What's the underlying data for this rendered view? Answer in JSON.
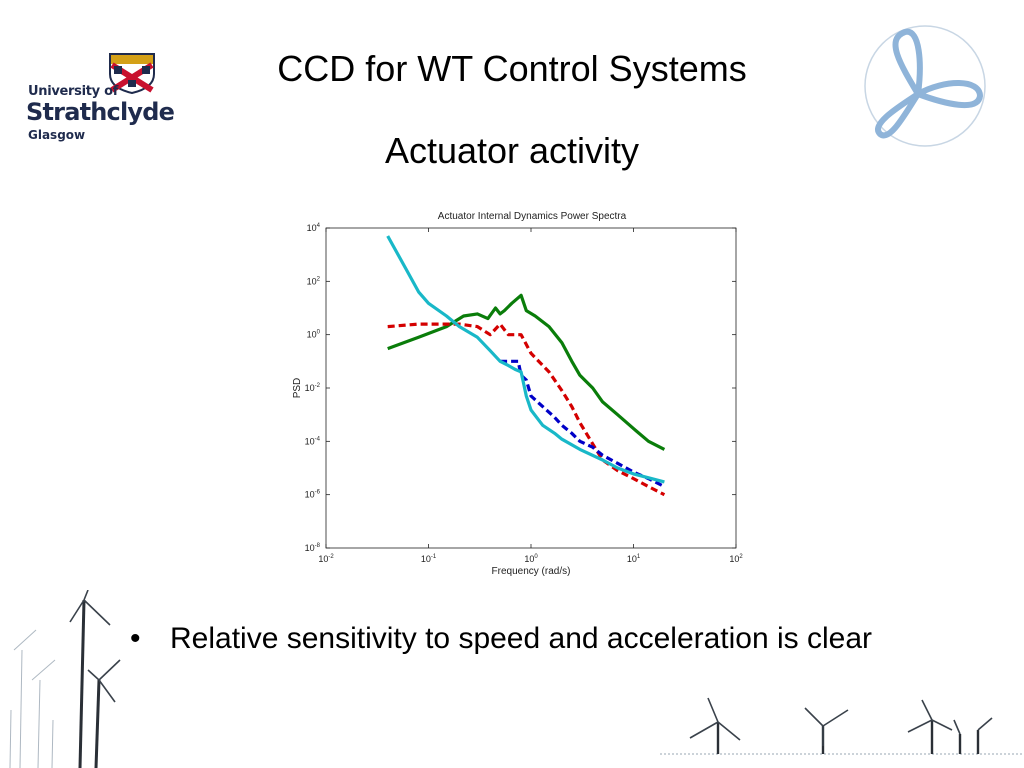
{
  "header": {
    "title": "CCD for WT Control Systems",
    "subtitle": "Actuator activity"
  },
  "logo": {
    "line1": "University of",
    "line2": "Strathclyde",
    "line3": "Glasgow",
    "colors": {
      "navy": "#1f2b4d",
      "red": "#c8102e",
      "gold": "#d4a017",
      "accent": "#8fb4d9"
    }
  },
  "bullets": [
    "Relative sensitivity to speed and acceleration is clear"
  ],
  "chart_data": {
    "type": "line",
    "title": "Actuator Internal Dynamics Power Spectra",
    "xlabel": "Frequency (rad/s)",
    "ylabel": "PSD",
    "xscale": "log",
    "yscale": "log",
    "xlim": [
      0.01,
      100
    ],
    "ylim": [
      1e-08,
      10000
    ],
    "xticks": [
      {
        "base": "10",
        "exp": "-2"
      },
      {
        "base": "10",
        "exp": "-1"
      },
      {
        "base": "10",
        "exp": "0"
      },
      {
        "base": "10",
        "exp": "1"
      },
      {
        "base": "10",
        "exp": "2"
      }
    ],
    "yticks": [
      {
        "base": "10",
        "exp": "4"
      },
      {
        "base": "10",
        "exp": "2"
      },
      {
        "base": "10",
        "exp": "0"
      },
      {
        "base": "10",
        "exp": "-2"
      },
      {
        "base": "10",
        "exp": "-4"
      },
      {
        "base": "10",
        "exp": "-6"
      },
      {
        "base": "10",
        "exp": "-8"
      }
    ],
    "grid": false,
    "series": [
      {
        "color": "#0a7d0a",
        "style": "solid",
        "x": [
          0.04,
          0.08,
          0.15,
          0.22,
          0.3,
          0.38,
          0.45,
          0.5,
          0.55,
          0.65,
          0.8,
          0.9,
          1.1,
          1.5,
          2.0,
          2.5,
          3.0,
          4.0,
          5.0,
          7.0,
          10.0,
          14.0,
          20.0
        ],
        "y": [
          0.3,
          0.8,
          2.0,
          5.0,
          6.0,
          4.0,
          10.0,
          6.0,
          8.0,
          15.0,
          30.0,
          8.0,
          5.0,
          2.0,
          0.5,
          0.1,
          0.03,
          0.01,
          0.003,
          0.001,
          0.0003,
          0.0001,
          5e-05
        ]
      },
      {
        "color": "#d40000",
        "style": "dashed",
        "x": [
          0.04,
          0.08,
          0.15,
          0.2,
          0.3,
          0.4,
          0.5,
          0.6,
          0.8,
          1.0,
          1.5,
          2.0,
          2.5,
          3.0,
          4.0,
          5.0,
          7.0,
          10.0,
          14.0,
          20.0
        ],
        "y": [
          2.0,
          2.5,
          2.5,
          2.5,
          2.0,
          1.0,
          2.5,
          1.0,
          1.0,
          0.2,
          0.04,
          0.008,
          0.002,
          0.0005,
          8e-05,
          2e-05,
          8e-06,
          4e-06,
          2e-06,
          1e-06
        ]
      },
      {
        "color": "#0000c8",
        "style": "dashed",
        "x": [
          0.5,
          0.6,
          0.75,
          0.8,
          0.9,
          1.0,
          1.3,
          1.7,
          2.0,
          2.5,
          3.0,
          4.0,
          5.0,
          7.0,
          10.0,
          14.0,
          20.0
        ],
        "y": [
          0.1,
          0.1,
          0.1,
          0.03,
          0.02,
          0.005,
          0.002,
          0.0008,
          0.0004,
          0.0002,
          0.0001,
          6e-05,
          3e-05,
          1.5e-05,
          7e-06,
          4e-06,
          2e-06
        ]
      },
      {
        "color": "#19b8c8",
        "style": "solid",
        "x": [
          0.04,
          0.06,
          0.08,
          0.1,
          0.15,
          0.2,
          0.3,
          0.4,
          0.5,
          0.6,
          0.7,
          0.8,
          0.9,
          1.0,
          1.3,
          1.7,
          2.0,
          3.0,
          5.0,
          7.0,
          10.0,
          15.0,
          20.0
        ],
        "y": [
          5000,
          300,
          40,
          15,
          5,
          2,
          0.8,
          0.25,
          0.1,
          0.07,
          0.05,
          0.04,
          0.005,
          0.0015,
          0.0004,
          0.0002,
          0.00012,
          5e-05,
          2e-05,
          1e-05,
          6e-06,
          4e-06,
          3e-06
        ]
      }
    ]
  }
}
